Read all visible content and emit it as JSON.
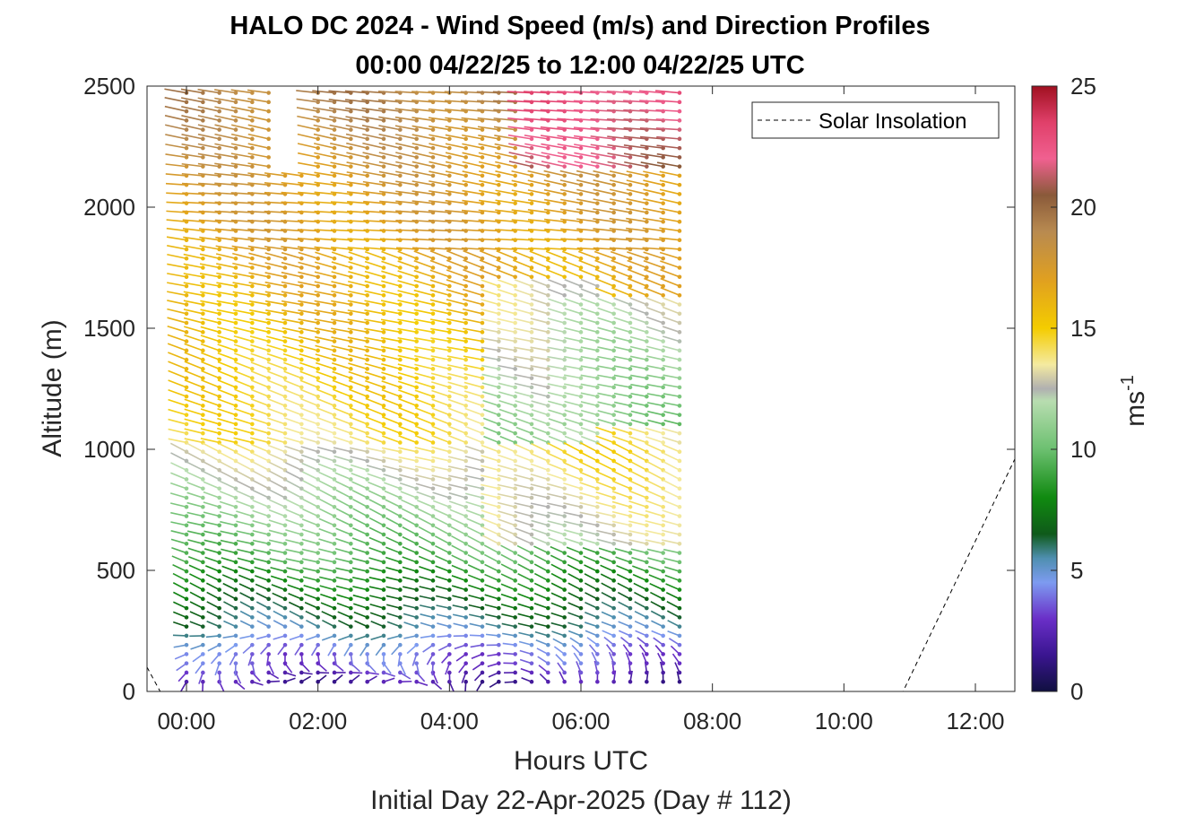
{
  "chart_data": {
    "type": "wind-barb profile",
    "title": "HALO DC 2024 - Wind Speed (m/s) and Direction Profiles",
    "subtitle": "00:00 04/22/25 to 12:00 04/22/25  UTC",
    "xlabel": "Hours UTC",
    "xsublabel": "Initial Day 22-Apr-2025 (Day # 112)",
    "ylabel": "Altitude (m)",
    "xlim": [
      -0.6,
      12.6
    ],
    "ylim": [
      0,
      2500
    ],
    "xticks": [
      0,
      2,
      4,
      6,
      8,
      10,
      12
    ],
    "xticklabels": [
      "00:00",
      "02:00",
      "04:00",
      "06:00",
      "08:00",
      "10:00",
      "12:00"
    ],
    "yticks": [
      0,
      500,
      1000,
      1500,
      2000,
      2500
    ],
    "yticklabels": [
      "0",
      "500",
      "1000",
      "1500",
      "2000",
      "2500"
    ],
    "colorbar": {
      "label_base": "ms",
      "label_exp": "-1",
      "range": [
        0,
        25
      ],
      "ticks": [
        0,
        5,
        10,
        15,
        20,
        25
      ],
      "ticklabels": [
        "0",
        "5",
        "10",
        "15",
        "20",
        "25"
      ],
      "stops": [
        {
          "v": 0,
          "c": "#101040"
        },
        {
          "v": 1.5,
          "c": "#3a1590"
        },
        {
          "v": 3,
          "c": "#6a2fc8"
        },
        {
          "v": 4.5,
          "c": "#7d9bf0"
        },
        {
          "v": 5.5,
          "c": "#4f8fb0"
        },
        {
          "v": 6.5,
          "c": "#0f5a1a"
        },
        {
          "v": 8,
          "c": "#108a10"
        },
        {
          "v": 10,
          "c": "#6cc070"
        },
        {
          "v": 12,
          "c": "#b8ddb0"
        },
        {
          "v": 12.5,
          "c": "#b0b0b0"
        },
        {
          "v": 13.5,
          "c": "#f4eaa0"
        },
        {
          "v": 15,
          "c": "#f4cc00"
        },
        {
          "v": 17,
          "c": "#e0a020"
        },
        {
          "v": 19,
          "c": "#b88a50"
        },
        {
          "v": 20.5,
          "c": "#8a5a3a"
        },
        {
          "v": 22,
          "c": "#f06090"
        },
        {
          "v": 23.5,
          "c": "#e0406a"
        },
        {
          "v": 25,
          "c": "#a01020"
        }
      ]
    },
    "barbs": {
      "time_start": 0,
      "time_end": 7.7,
      "time_step": 0.25,
      "alt_start": 40,
      "alt_end": 2500,
      "alt_step": 38,
      "gaps": [
        {
          "t0": 1.3,
          "t1": 1.75,
          "a0": 2140,
          "a1": 2500
        }
      ]
    },
    "series": [
      {
        "name": "Solar Insolation",
        "style": "dashed",
        "color": "#000000",
        "x": [
          -0.6,
          -0.4,
          10.9,
          12.6
        ],
        "y": [
          100,
          0,
          0,
          960
        ]
      }
    ],
    "legend": {
      "entries": [
        "Solar Insolation"
      ],
      "position": "top-right"
    },
    "grid": false
  }
}
